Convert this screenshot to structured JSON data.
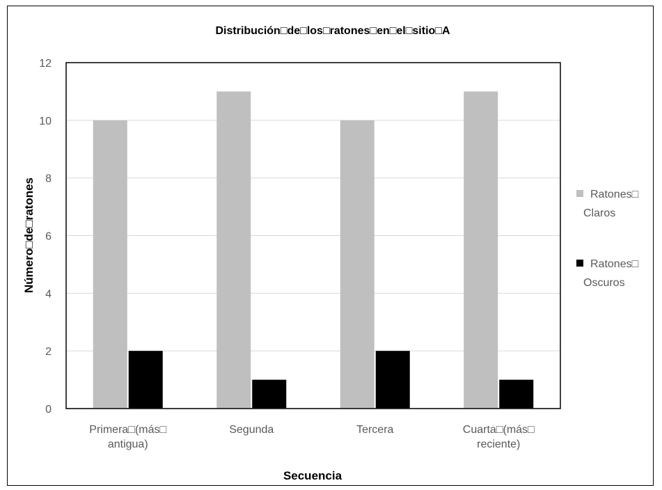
{
  "chart_data": {
    "type": "bar",
    "title": "Distribución□de□los□ratones□en□el□sitio□A",
    "xlabel": "Secuencia",
    "ylabel": "Número□de□ratones",
    "categories": [
      [
        "Primera□(más□",
        "antigua)"
      ],
      [
        "Segunda"
      ],
      [
        "Tercera"
      ],
      [
        "Cuarta□(más□",
        "reciente)"
      ]
    ],
    "series": [
      {
        "name": [
          "Ratones□",
          "Claros"
        ],
        "values": [
          10,
          11,
          10,
          11
        ],
        "color": "#bfbfbf"
      },
      {
        "name": [
          "Ratones□",
          "Oscuros"
        ],
        "values": [
          2,
          1,
          2,
          1
        ],
        "color": "#000000"
      }
    ],
    "ylim": [
      0,
      12
    ],
    "yticks": [
      "0",
      "2",
      "4",
      "6",
      "8",
      "10",
      "12"
    ],
    "grid": true,
    "legend": "right"
  }
}
